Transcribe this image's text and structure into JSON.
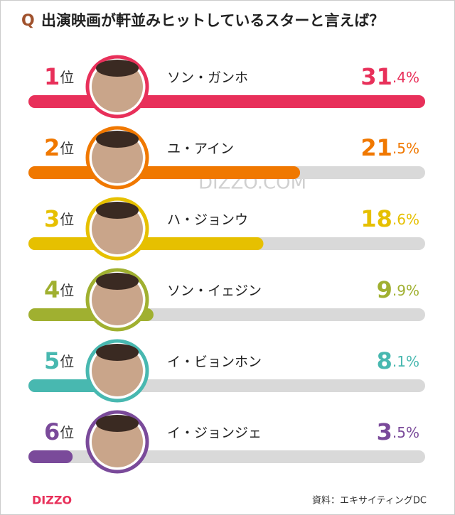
{
  "q_mark": "Q",
  "title": "出演映画が軒並みヒットしているスターと言えば？",
  "watermark": "DIZZO.COM",
  "logo": "DIZZO",
  "source": "資料：エキサイティングDC",
  "chart_data": {
    "type": "bar",
    "ranks": [
      "1位",
      "2位",
      "3位",
      "4位",
      "5位",
      "6位"
    ],
    "categories": [
      "ソン・ガンホ",
      "ユ・アイン",
      "ハ・ジョンウ",
      "ソン・イェジン",
      "イ・ビョンホン",
      "イ・ジョンジェ"
    ],
    "values": [
      31.4,
      21.5,
      18.6,
      9.9,
      8.1,
      3.5
    ],
    "value_labels": [
      "31.4%",
      "21.5%",
      "18.6%",
      "9.9%",
      "8.1%",
      "3.5%"
    ],
    "colors": [
      "#e8305a",
      "#f07800",
      "#e6c000",
      "#a0b030",
      "#48b8b0",
      "#7a4a9a"
    ],
    "track_color": "#d9d9d9",
    "xlim": [
      0,
      31.4
    ]
  }
}
